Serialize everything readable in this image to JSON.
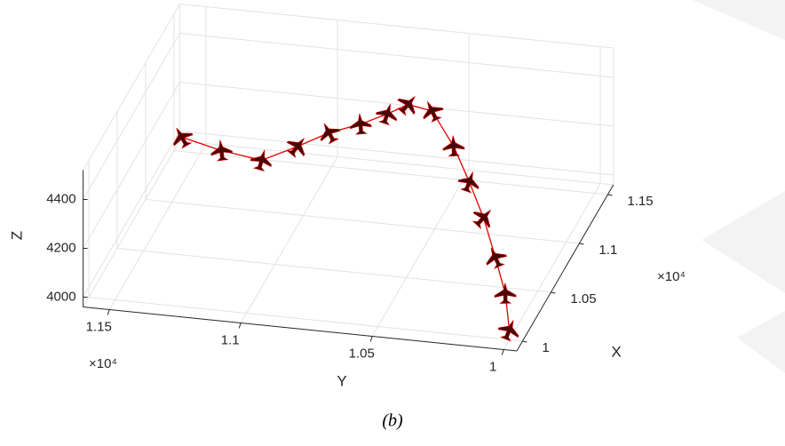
{
  "chart_data": {
    "type": "line3d",
    "caption": "(b)",
    "xlabel": "X",
    "ylabel": "Y",
    "zlabel": "Z",
    "x_exponent_label": "×10⁴",
    "y_exponent_label": "×10⁴",
    "xlim": [
      0.99,
      1.16
    ],
    "ylim": [
      0.995,
      1.16
    ],
    "zlim": [
      3960,
      4520
    ],
    "xticks": [
      1,
      1.05,
      1.1,
      1.15
    ],
    "yticks": [
      1,
      1.05,
      1.1,
      1.15
    ],
    "zticks": [
      4000,
      4200,
      4400
    ],
    "grid": true,
    "series": [
      {
        "color": "#e00000",
        "marker_color": "#4a0606",
        "x": [
          1.048,
          1.039,
          1.036,
          1.048,
          1.062,
          1.071,
          1.081,
          1.09,
          1.086,
          1.073,
          1.059,
          1.047,
          1.031,
          1.016,
          1.0
        ],
        "y": [
          1.135,
          1.118,
          1.102,
          1.091,
          1.082,
          1.072,
          1.064,
          1.058,
          1.048,
          1.037,
          1.028,
          1.02,
          1.012,
          1.005,
          1.0
        ],
        "z": [
          4450,
          4450,
          4440,
          4460,
          4470,
          4480,
          4490,
          4500,
          4500,
          4420,
          4340,
          4250,
          4160,
          4080,
          4000
        ]
      }
    ]
  }
}
